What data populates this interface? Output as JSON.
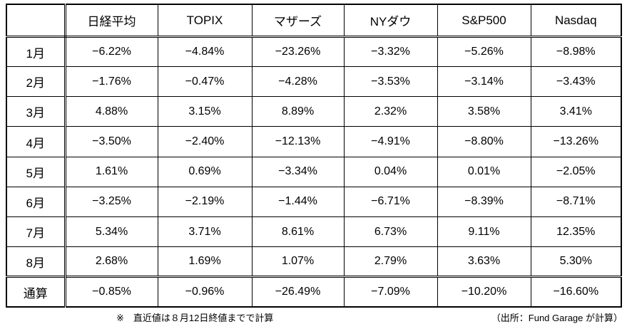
{
  "chart_data": {
    "type": "table",
    "title": "",
    "corner_label": "",
    "columns": [
      "日経平均",
      "TOPIX",
      "マザーズ",
      "NYダウ",
      "S&P500",
      "Nasdaq"
    ],
    "row_labels": [
      "1月",
      "2月",
      "3月",
      "4月",
      "5月",
      "6月",
      "7月",
      "8月",
      "通算"
    ],
    "rows": [
      {
        "label": "1月",
        "values": [
          "−6.22%",
          "−4.84%",
          "−23.26%",
          "−3.32%",
          "−5.26%",
          "−8.98%"
        ]
      },
      {
        "label": "2月",
        "values": [
          "−1.76%",
          "−0.47%",
          "−4.28%",
          "−3.53%",
          "−3.14%",
          "−3.43%"
        ]
      },
      {
        "label": "3月",
        "values": [
          "4.88%",
          "3.15%",
          "8.89%",
          "2.32%",
          "3.58%",
          "3.41%"
        ]
      },
      {
        "label": "4月",
        "values": [
          "−3.50%",
          "−2.40%",
          "−12.13%",
          "−4.91%",
          "−8.80%",
          "−13.26%"
        ]
      },
      {
        "label": "5月",
        "values": [
          "1.61%",
          "0.69%",
          "−3.34%",
          "0.04%",
          "0.01%",
          "−2.05%"
        ]
      },
      {
        "label": "6月",
        "values": [
          "−3.25%",
          "−2.19%",
          "−1.44%",
          "−6.71%",
          "−8.39%",
          "−8.71%"
        ]
      },
      {
        "label": "7月",
        "values": [
          "5.34%",
          "3.71%",
          "8.61%",
          "6.73%",
          "9.11%",
          "12.35%"
        ]
      },
      {
        "label": "8月",
        "values": [
          "2.68%",
          "1.69%",
          "1.07%",
          "2.79%",
          "3.63%",
          "5.30%"
        ]
      },
      {
        "label": "通算",
        "values": [
          "−0.85%",
          "−0.96%",
          "−26.49%",
          "−7.09%",
          "−10.20%",
          "−16.60%"
        ]
      }
    ],
    "total_row_label": "通算",
    "layout": {
      "grid": true,
      "header_separator": "double",
      "total_separator": "double",
      "label_column_separator": "double"
    }
  },
  "footnotes": {
    "left": "※　直近値は８月12日終値までで計算",
    "right": "（出所：Fund Garage が計算）"
  },
  "colors": {
    "border": "#000000",
    "text": "#000000",
    "background": "#ffffff"
  }
}
